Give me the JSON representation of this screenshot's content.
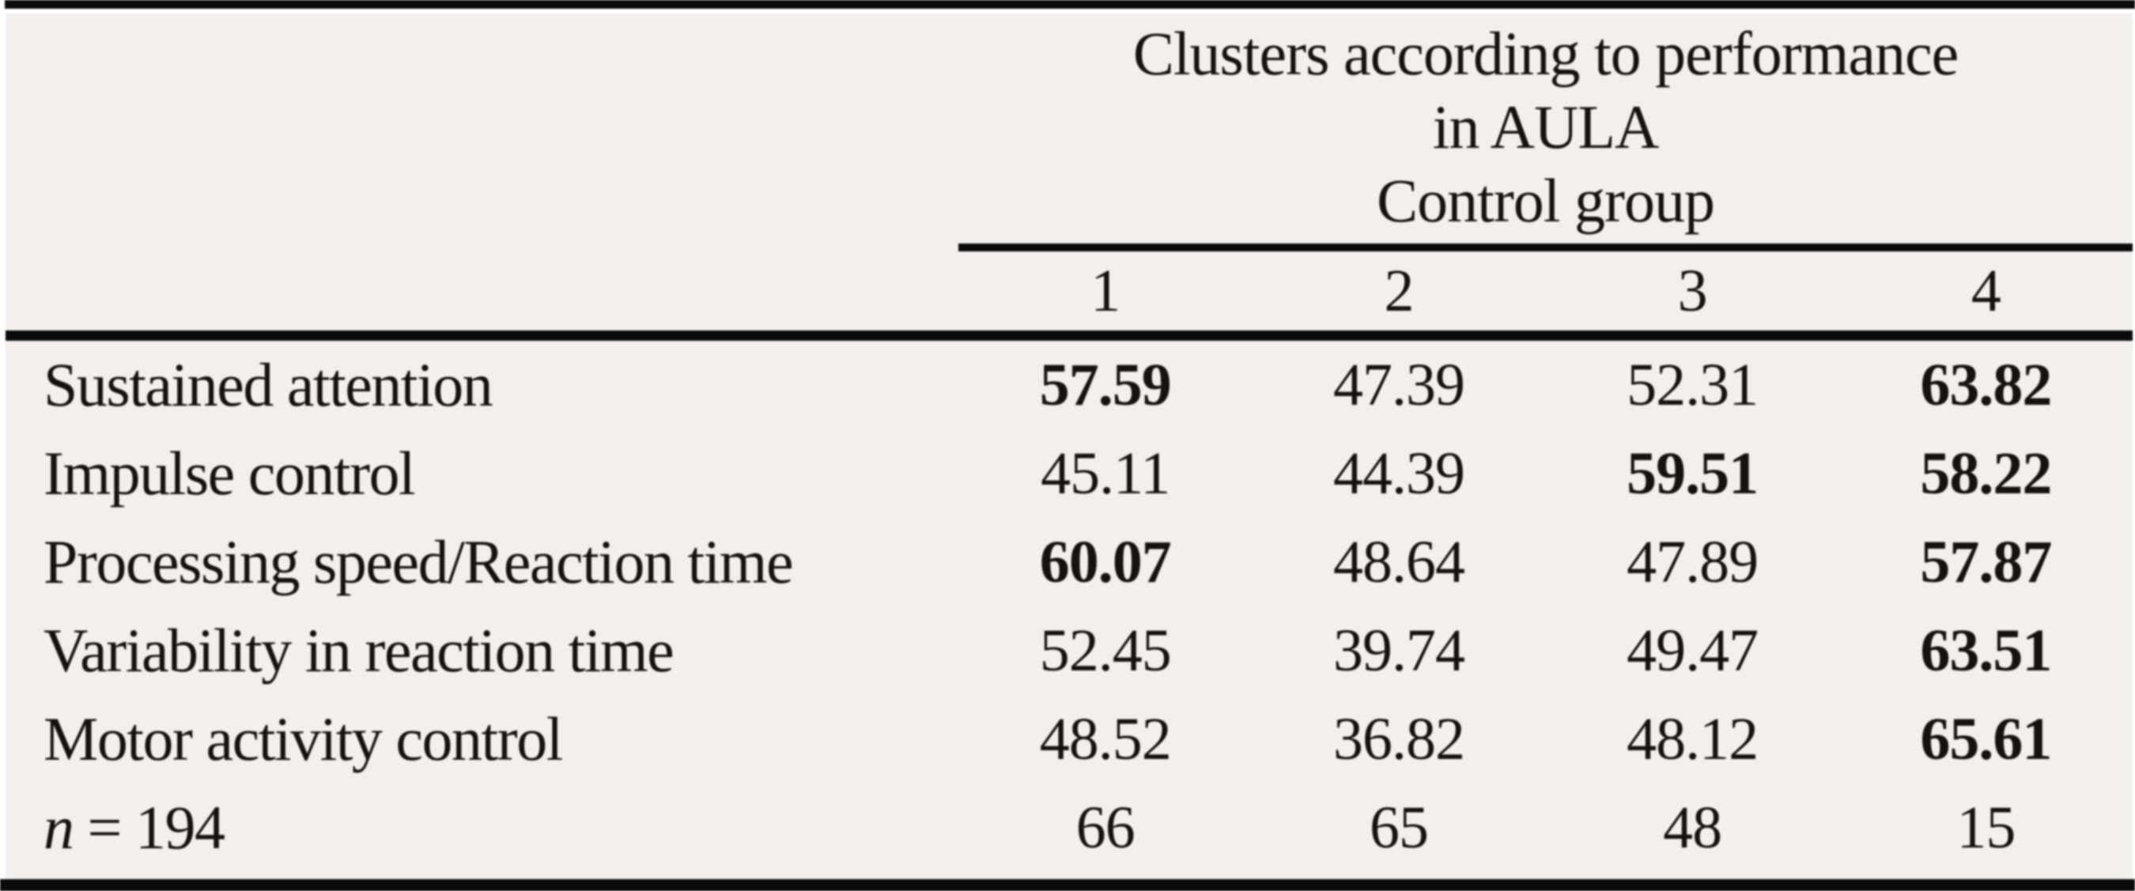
{
  "colors": {
    "background": "#f3efec",
    "rule": "#0b0b0b",
    "text": "#161210"
  },
  "table": {
    "group_header": {
      "line1": "Clusters according to performance",
      "line2": "in AULA",
      "line3": "Control group"
    },
    "columns": [
      "1",
      "2",
      "3",
      "4"
    ],
    "rows": [
      {
        "label": "Sustained attention",
        "values": [
          "57.59",
          "47.39",
          "52.31",
          "63.82"
        ],
        "bold": [
          true,
          false,
          false,
          true
        ]
      },
      {
        "label": "Impulse control",
        "values": [
          "45.11",
          "44.39",
          "59.51",
          "58.22"
        ],
        "bold": [
          false,
          false,
          true,
          true
        ]
      },
      {
        "label": "Processing speed/Reaction time",
        "values": [
          "60.07",
          "48.64",
          "47.89",
          "57.87"
        ],
        "bold": [
          true,
          false,
          false,
          true
        ]
      },
      {
        "label": "Variability in reaction time",
        "values": [
          "52.45",
          "39.74",
          "49.47",
          "63.51"
        ],
        "bold": [
          false,
          false,
          false,
          true
        ]
      },
      {
        "label": "Motor activity control",
        "values": [
          "48.52",
          "36.82",
          "48.12",
          "65.61"
        ],
        "bold": [
          false,
          false,
          false,
          true
        ]
      }
    ],
    "footer_row": {
      "symbol": "n",
      "rest": "= 194",
      "values": [
        "66",
        "65",
        "48",
        "15"
      ],
      "bold": [
        false,
        false,
        false,
        false
      ]
    }
  }
}
